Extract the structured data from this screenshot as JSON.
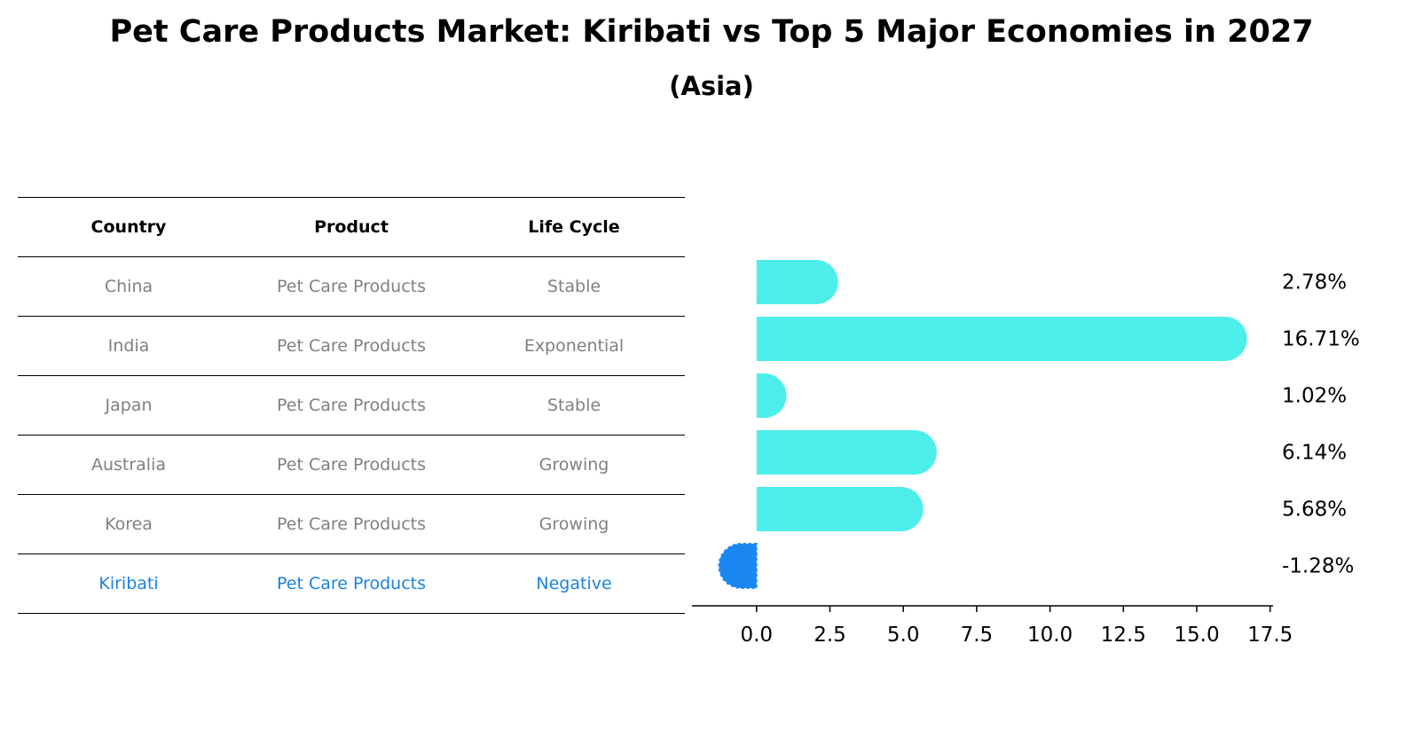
{
  "header": {
    "title": "Pet Care Products Market: Kiribati vs Top 5 Major Economies in 2027",
    "subtitle": "(Asia)"
  },
  "table": {
    "columns": [
      "Country",
      "Product",
      "Life Cycle"
    ],
    "rows": [
      {
        "country": "China",
        "product": "Pet Care Products",
        "life_cycle": "Stable"
      },
      {
        "country": "India",
        "product": "Pet Care Products",
        "life_cycle": "Exponential"
      },
      {
        "country": "Japan",
        "product": "Pet Care Products",
        "life_cycle": "Stable"
      },
      {
        "country": "Australia",
        "product": "Pet Care Products",
        "life_cycle": "Growing"
      },
      {
        "country": "Korea",
        "product": "Pet Care Products",
        "life_cycle": "Growing"
      },
      {
        "country": "Kiribati",
        "product": "Pet Care Products",
        "life_cycle": "Negative"
      }
    ]
  },
  "chart_data": {
    "type": "bar",
    "orientation": "horizontal",
    "categories": [
      "China",
      "India",
      "Japan",
      "Australia",
      "Korea",
      "Kiribati"
    ],
    "values": [
      2.78,
      16.71,
      1.02,
      6.14,
      5.68,
      -1.28
    ],
    "value_labels": [
      "2.78%",
      "16.71%",
      "1.02%",
      "6.14%",
      "5.68%",
      "-1.28%"
    ],
    "highlight": "Kiribati",
    "xlim": [
      -2.2,
      17.6
    ],
    "xticks": [
      0.0,
      2.5,
      5.0,
      7.5,
      10.0,
      12.5,
      15.0,
      17.5
    ],
    "xtick_labels": [
      "0.0",
      "2.5",
      "5.0",
      "7.5",
      "10.0",
      "12.5",
      "15.0",
      "17.5"
    ],
    "colors": {
      "bar": "#4deeea",
      "highlight": "#1a87f0",
      "axis": "#000000",
      "label": "#000000"
    }
  }
}
